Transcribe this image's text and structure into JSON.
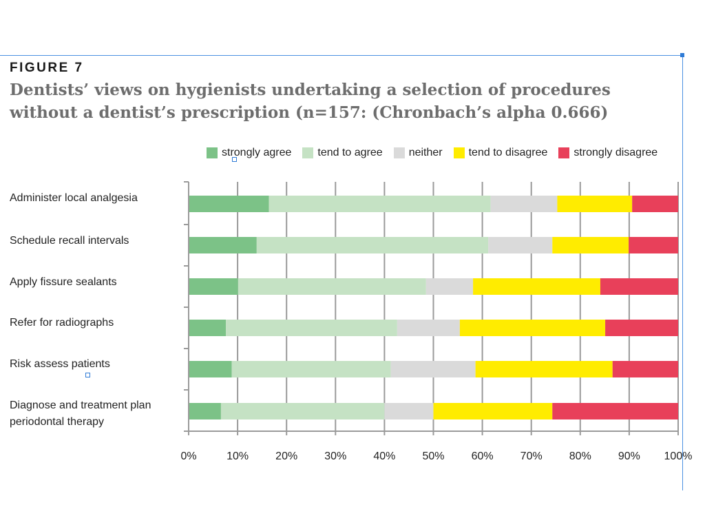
{
  "figure_label": "FIGURE 7",
  "title": "Dentists’ views on hygienists undertaking a selection of procedures without a dentist’s prescription (n=157: (Chronbach’s alpha 0.666)",
  "chart_data": {
    "type": "bar",
    "orientation": "horizontal",
    "stacked": true,
    "categories": [
      "Administer local analgesia",
      "Schedule recall intervals",
      "Apply fissure sealants",
      "Refer for radiographs",
      "Risk assess patients",
      "Diagnose and treatment plan periodontal therapy"
    ],
    "series": [
      {
        "name": "strongly agree",
        "color": "#7cc287",
        "values": [
          16.4,
          13.9,
          10.1,
          7.6,
          8.8,
          6.6
        ]
      },
      {
        "name": "tend to agree",
        "color": "#c5e2c4",
        "values": [
          45.3,
          47.3,
          38.4,
          35.0,
          32.5,
          33.4
        ]
      },
      {
        "name": "neither",
        "color": "#dadada",
        "values": [
          13.6,
          13.1,
          9.6,
          12.8,
          17.3,
          10.0
        ]
      },
      {
        "name": "tend to disagree",
        "color": "#ffec00",
        "values": [
          15.3,
          15.6,
          26.0,
          29.7,
          28.0,
          24.3
        ]
      },
      {
        "name": "strongly disagree",
        "color": "#e8405a",
        "values": [
          9.4,
          10.1,
          15.9,
          14.9,
          13.4,
          25.7
        ]
      }
    ],
    "xticks": [
      "0%",
      "10%",
      "20%",
      "30%",
      "40%",
      "50%",
      "60%",
      "70%",
      "80%",
      "90%",
      "100%"
    ],
    "xlim": [
      0,
      100
    ],
    "grid": true,
    "legend": "top"
  }
}
